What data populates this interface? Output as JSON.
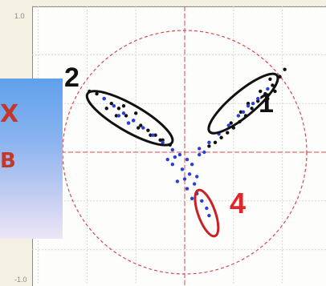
{
  "chart_data": {
    "type": "scatter",
    "title": "",
    "xlabel": "",
    "ylabel": "",
    "ytick_labels": [
      "1.0",
      "-1.0"
    ],
    "xlim": [
      -1.2,
      1.2
    ],
    "ylim": [
      -1.2,
      1.2
    ],
    "grid": true,
    "reference_circle_radius": 1.0,
    "series": [
      {
        "color": "#111111",
        "points": [
          [
            0.78,
            0.62
          ],
          [
            0.72,
            0.55
          ],
          [
            0.66,
            0.48
          ],
          [
            0.6,
            0.42
          ],
          [
            0.55,
            0.36
          ],
          [
            0.5,
            0.3
          ],
          [
            0.45,
            0.25
          ],
          [
            0.4,
            0.2
          ],
          [
            0.35,
            0.16
          ],
          [
            0.3,
            0.12
          ],
          [
            0.25,
            0.08
          ],
          [
            0.2,
            0.05
          ],
          [
            0.82,
            0.68
          ],
          [
            0.7,
            0.6
          ],
          [
            0.62,
            0.5
          ],
          [
            0.52,
            0.4
          ],
          [
            0.46,
            0.33
          ],
          [
            0.38,
            0.24
          ],
          [
            0.74,
            0.5
          ],
          [
            0.68,
            0.44
          ],
          [
            -0.72,
            0.48
          ],
          [
            -0.66,
            0.44
          ],
          [
            -0.6,
            0.4
          ],
          [
            -0.54,
            0.36
          ],
          [
            -0.48,
            0.3
          ],
          [
            -0.42,
            0.26
          ],
          [
            -0.36,
            0.22
          ],
          [
            -0.3,
            0.18
          ],
          [
            -0.24,
            0.14
          ],
          [
            -0.18,
            0.1
          ],
          [
            -0.12,
            0.06
          ],
          [
            -0.78,
            0.5
          ],
          [
            -0.64,
            0.36
          ],
          [
            -0.56,
            0.3
          ],
          [
            -0.46,
            0.24
          ],
          [
            -0.38,
            0.2
          ],
          [
            -0.28,
            0.14
          ],
          [
            -0.2,
            0.1
          ],
          [
            -0.5,
            0.38
          ],
          [
            -0.4,
            0.32
          ]
        ]
      },
      {
        "color": "#2a3fd6",
        "points": [
          [
            0.68,
            0.52
          ],
          [
            0.6,
            0.44
          ],
          [
            0.52,
            0.38
          ],
          [
            0.44,
            0.3
          ],
          [
            0.36,
            0.22
          ],
          [
            0.28,
            0.15
          ],
          [
            0.2,
            0.08
          ],
          [
            0.12,
            0.03
          ],
          [
            0.56,
            0.4
          ],
          [
            0.48,
            0.33
          ],
          [
            -0.66,
            0.44
          ],
          [
            -0.58,
            0.38
          ],
          [
            -0.5,
            0.32
          ],
          [
            -0.42,
            0.26
          ],
          [
            -0.34,
            0.2
          ],
          [
            -0.26,
            0.14
          ],
          [
            -0.18,
            0.08
          ],
          [
            -0.1,
            0.02
          ],
          [
            -0.54,
            0.3
          ],
          [
            -0.46,
            0.24
          ],
          [
            -0.04,
            -0.02
          ],
          [
            0.02,
            -0.06
          ],
          [
            -0.08,
            -0.04
          ],
          [
            0.06,
            -0.1
          ],
          [
            -0.02,
            -0.14
          ],
          [
            0.04,
            -0.18
          ],
          [
            0.0,
            -0.22
          ],
          [
            0.08,
            -0.26
          ],
          [
            0.02,
            -0.3
          ],
          [
            0.1,
            -0.34
          ],
          [
            0.14,
            -0.4
          ],
          [
            0.18,
            -0.46
          ],
          [
            -0.1,
            -0.1
          ],
          [
            -0.14,
            -0.06
          ],
          [
            0.12,
            -0.02
          ],
          [
            0.16,
            0.0
          ],
          [
            -0.06,
            -0.24
          ],
          [
            0.06,
            -0.38
          ],
          [
            0.2,
            -0.52
          ],
          [
            0.1,
            -0.2
          ]
        ]
      }
    ],
    "ellipses": [
      {
        "label": "1",
        "color": "#111111",
        "cx": 0.48,
        "cy": 0.4,
        "rx": 0.36,
        "ry": 0.1,
        "angle": 40
      },
      {
        "label": "2",
        "color": "#111111",
        "cx": -0.45,
        "cy": 0.28,
        "rx": 0.4,
        "ry": 0.11,
        "angle": -30
      },
      {
        "label": "4",
        "color": "#cc1f24",
        "cx": 0.18,
        "cy": -0.5,
        "rx": 0.2,
        "ry": 0.07,
        "angle": -70
      }
    ]
  },
  "annotations": {
    "label_1": "1",
    "label_2": "2",
    "label_4": "4"
  },
  "overlay": {
    "line_1": "X",
    "line_2": "B"
  }
}
